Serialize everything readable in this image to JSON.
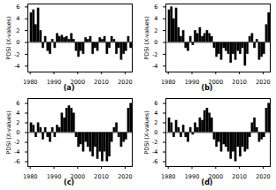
{
  "chart_data": [
    {
      "type": "bar",
      "title": "(a)",
      "ylabel": "PDSI (X-values)",
      "x": [
        1980,
        1981,
        1982,
        1983,
        1984,
        1985,
        1986,
        1987,
        1988,
        1989,
        1990,
        1991,
        1992,
        1993,
        1994,
        1995,
        1996,
        1997,
        1998,
        1999,
        2000,
        2001,
        2002,
        2003,
        2004,
        2005,
        2006,
        2007,
        2008,
        2009,
        2010,
        2011,
        2012,
        2013,
        2014,
        2015,
        2016,
        2017,
        2018,
        2019,
        2020,
        2021,
        2022
      ],
      "values": [
        5,
        5.5,
        3,
        5.8,
        2,
        -1,
        1,
        -1.5,
        -2,
        0.5,
        -1,
        1.5,
        1,
        1.2,
        0.8,
        1,
        0.5,
        1.5,
        0.5,
        -1.5,
        -2.5,
        -1.5,
        -2,
        0.8,
        0.5,
        1,
        -2,
        -1,
        -1.5,
        0.8,
        0.5,
        1,
        -2,
        -1,
        1,
        0.5,
        -2,
        -1,
        -3,
        -2,
        -1.5,
        1,
        -1
      ],
      "xlim": [
        1979,
        2023
      ],
      "xticks": [
        1980,
        1990,
        2000,
        2010,
        2020
      ],
      "ylim": [
        -5,
        6.5
      ],
      "yticks": [
        -4,
        -2,
        0,
        2,
        4,
        6
      ],
      "color": "#000000"
    },
    {
      "type": "bar",
      "title": "(b)",
      "ylabel": "PDSI (X-values)",
      "x": [
        1980,
        1981,
        1982,
        1983,
        1984,
        1985,
        1986,
        1987,
        1988,
        1989,
        1990,
        1991,
        1992,
        1993,
        1994,
        1995,
        1996,
        1997,
        1998,
        1999,
        2000,
        2001,
        2002,
        2003,
        2004,
        2005,
        2006,
        2007,
        2008,
        2009,
        2010,
        2011,
        2012,
        2013,
        2014,
        2015,
        2016,
        2017,
        2018,
        2019,
        2020,
        2021,
        2022
      ],
      "values": [
        5.5,
        6,
        4,
        5.8,
        2.5,
        1,
        2,
        -1,
        -1.5,
        1,
        -0.5,
        2,
        1.5,
        2.5,
        1,
        1.5,
        2,
        1.5,
        1,
        -1,
        -2.5,
        -2,
        -3,
        -1,
        -1.5,
        -2,
        -3.5,
        -2,
        -3,
        -1.5,
        -2,
        -1,
        -4,
        -2,
        1,
        1.5,
        -1,
        0.5,
        -3,
        -2.5,
        -2,
        3,
        5
      ],
      "xlim": [
        1979,
        2023
      ],
      "xticks": [
        1980,
        1990,
        2000,
        2010,
        2020
      ],
      "ylim": [
        -5,
        6.5
      ],
      "yticks": [
        -4,
        -2,
        0,
        2,
        4,
        6
      ],
      "color": "#000000"
    },
    {
      "type": "bar",
      "title": "(c)",
      "ylabel": "PDSI (X-values)",
      "x": [
        1980,
        1981,
        1982,
        1983,
        1984,
        1985,
        1986,
        1987,
        1988,
        1989,
        1990,
        1991,
        1992,
        1993,
        1994,
        1995,
        1996,
        1997,
        1998,
        1999,
        2000,
        2001,
        2002,
        2003,
        2004,
        2005,
        2006,
        2007,
        2008,
        2009,
        2010,
        2011,
        2012,
        2013,
        2014,
        2015,
        2016,
        2017,
        2018,
        2019,
        2020,
        2021,
        2022
      ],
      "values": [
        2,
        1.5,
        -1,
        2,
        1,
        -1.5,
        1,
        -1,
        -2,
        1,
        -1,
        1.5,
        1,
        4,
        3,
        5,
        5.5,
        5,
        4,
        -1,
        -3,
        -2.5,
        -4,
        -2,
        -3,
        -4,
        -5,
        -3,
        -5.5,
        -4,
        -6,
        -4,
        -6,
        -5,
        -2,
        1,
        2,
        -1,
        -3,
        -2,
        -1.5,
        5,
        6
      ],
      "xlim": [
        1979,
        2023
      ],
      "xticks": [
        1980,
        1990,
        2000,
        2010,
        2020
      ],
      "ylim": [
        -7,
        7
      ],
      "yticks": [
        -6,
        -4,
        -2,
        0,
        2,
        4,
        6
      ],
      "color": "#000000"
    },
    {
      "type": "bar",
      "title": "(d)",
      "ylabel": "PDSI (X-values)",
      "x": [
        1980,
        1981,
        1982,
        1983,
        1984,
        1985,
        1986,
        1987,
        1988,
        1989,
        1990,
        1991,
        1992,
        1993,
        1994,
        1995,
        1996,
        1997,
        1998,
        1999,
        2000,
        2001,
        2002,
        2003,
        2004,
        2005,
        2006,
        2007,
        2008,
        2009,
        2010,
        2011,
        2012,
        2013,
        2014,
        2015,
        2016,
        2017,
        2018,
        2019,
        2020,
        2021,
        2022
      ],
      "values": [
        3,
        2,
        -1,
        2.5,
        1,
        -1,
        1.5,
        -1,
        -2,
        1,
        -0.5,
        2,
        1,
        3,
        2.5,
        4.5,
        5,
        4,
        3,
        -1.5,
        -3,
        -2,
        -4,
        -2.5,
        -3,
        -4,
        -5.5,
        -4,
        -6,
        -3,
        -5,
        -3,
        -4,
        -3.5,
        -1,
        2,
        3,
        1,
        -2,
        -1.5,
        -1,
        5,
        6
      ],
      "xlim": [
        1979,
        2023
      ],
      "xticks": [
        1980,
        1990,
        2000,
        2010,
        2020
      ],
      "ylim": [
        -7,
        7
      ],
      "yticks": [
        -6,
        -4,
        -2,
        0,
        2,
        4,
        6
      ],
      "color": "#000000"
    }
  ]
}
